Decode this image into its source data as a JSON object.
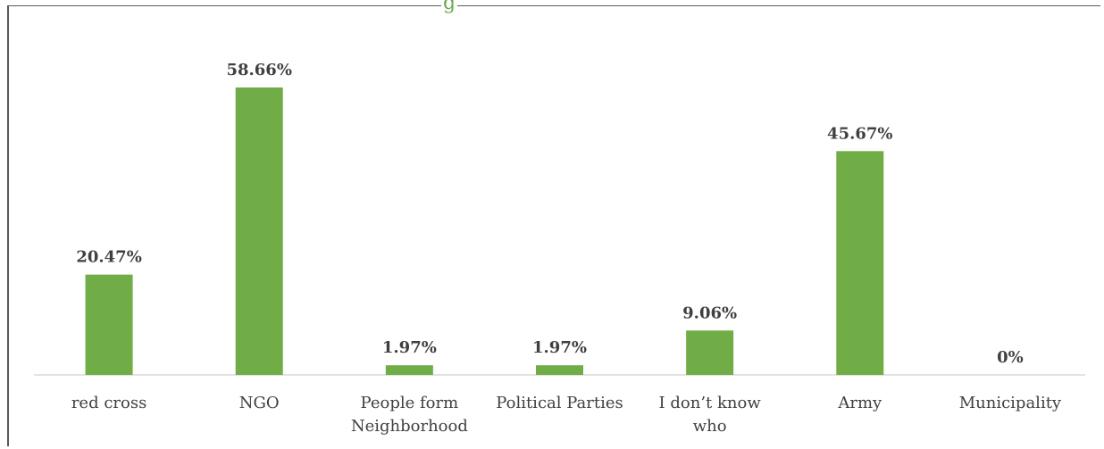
{
  "chart_data": {
    "type": "bar",
    "title": "",
    "title_fragment": "g",
    "categories": [
      "red cross",
      "NGO",
      "People form Neighborhood",
      "Political Parties",
      "I don’t know who",
      "Army",
      "Municipality"
    ],
    "category_lines": [
      [
        "red cross"
      ],
      [
        "NGO"
      ],
      [
        "People form",
        "Neighborhood"
      ],
      [
        "Political Parties"
      ],
      [
        "I don’t know",
        "who"
      ],
      [
        "Army"
      ],
      [
        "Municipality"
      ]
    ],
    "values": [
      20.47,
      58.66,
      1.97,
      1.97,
      9.06,
      45.67,
      0
    ],
    "value_labels": [
      "20.47%",
      "58.66%",
      "1.97%",
      "1.97%",
      "9.06%",
      "45.67%",
      "0%"
    ],
    "ylim": [
      0,
      58.66
    ],
    "xlabel": "",
    "ylabel": "",
    "grid": false,
    "colors": {
      "bar": "#70ad47",
      "axis": "#d9d9d9",
      "text": "#404040",
      "title": "#6aa84f"
    }
  }
}
